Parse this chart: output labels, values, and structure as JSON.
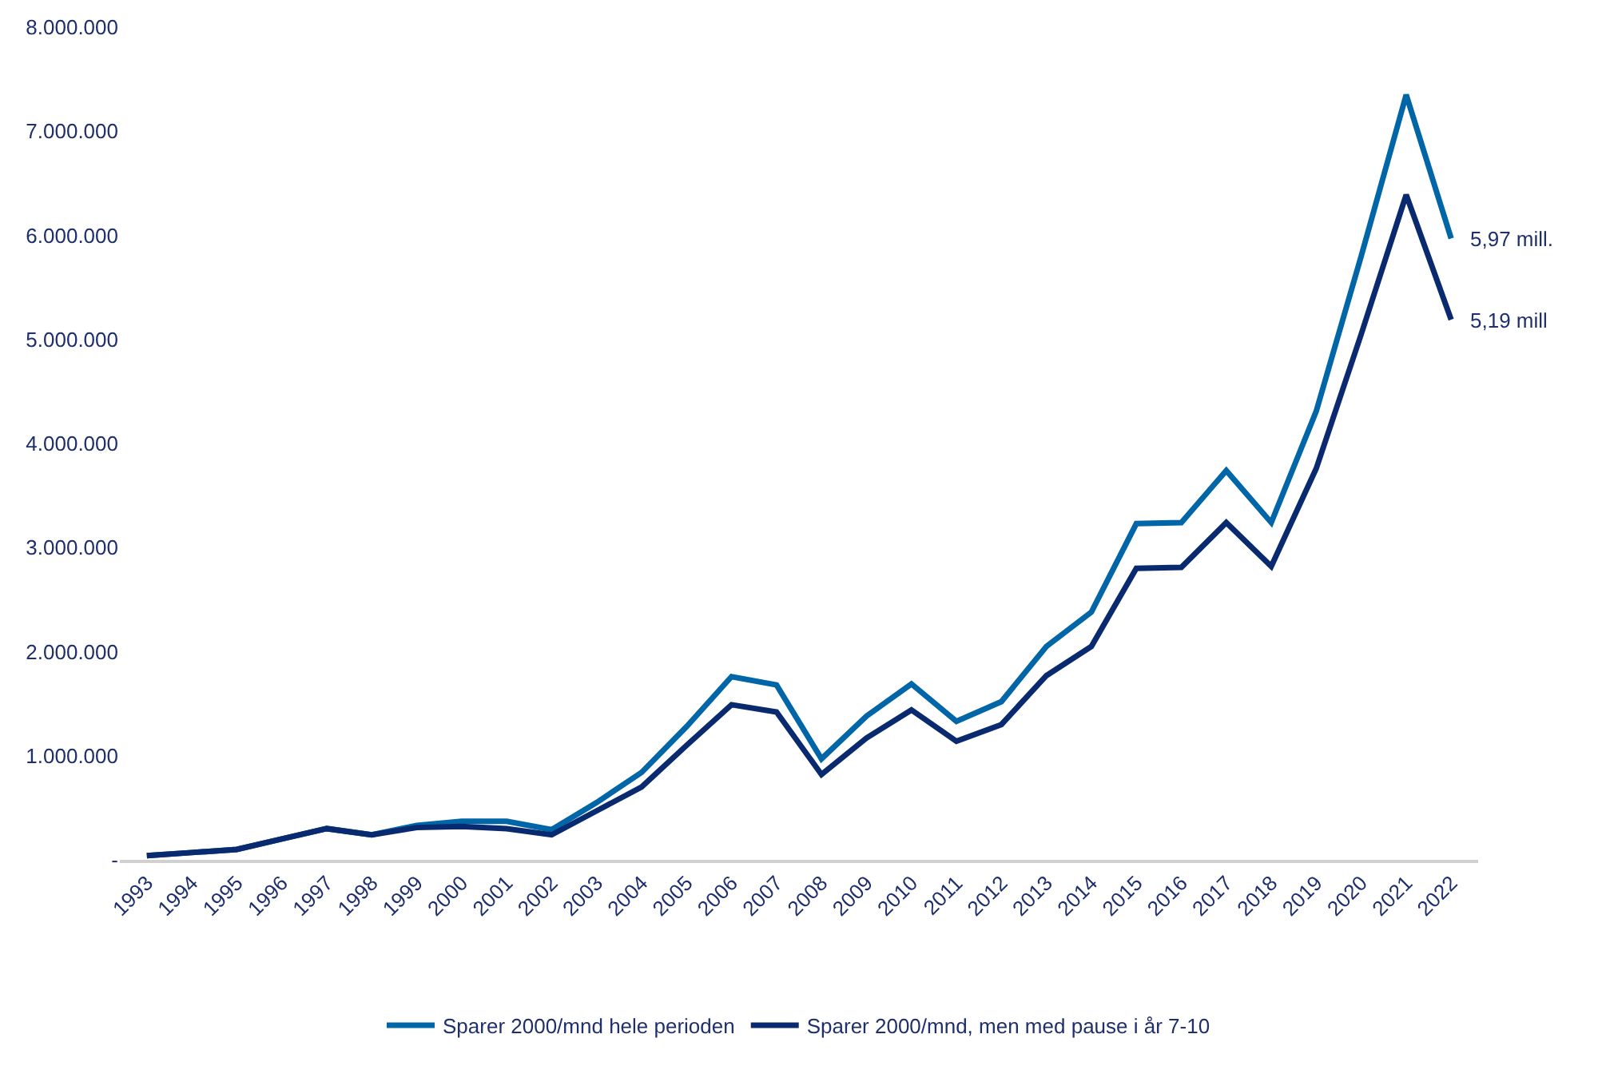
{
  "chart_data": {
    "type": "line",
    "categories": [
      "1993",
      "1994",
      "1995",
      "1996",
      "1997",
      "1998",
      "1999",
      "2000",
      "2001",
      "2002",
      "2003",
      "2004",
      "2005",
      "2006",
      "2007",
      "2008",
      "2009",
      "2010",
      "2011",
      "2012",
      "2013",
      "2014",
      "2015",
      "2016",
      "2017",
      "2018",
      "2019",
      "2020",
      "2021",
      "2022"
    ],
    "series": [
      {
        "name": "Sparer 2000/mnd hele perioden",
        "color": "#0066a8",
        "values": [
          40000,
          70000,
          100000,
          200000,
          300000,
          240000,
          330000,
          370000,
          370000,
          290000,
          550000,
          840000,
          1280000,
          1760000,
          1680000,
          970000,
          1380000,
          1690000,
          1330000,
          1520000,
          2050000,
          2380000,
          3230000,
          3240000,
          3740000,
          3240000,
          4310000,
          5800000,
          7350000,
          5970000
        ]
      },
      {
        "name": "Sparer 2000/mnd, men med pause i år 7-10",
        "color": "#0a2a70",
        "values": [
          40000,
          70000,
          100000,
          200000,
          300000,
          240000,
          310000,
          320000,
          300000,
          240000,
          470000,
          700000,
          1100000,
          1490000,
          1420000,
          820000,
          1170000,
          1440000,
          1140000,
          1300000,
          1770000,
          2050000,
          2800000,
          2810000,
          3240000,
          2820000,
          3760000,
          5050000,
          6390000,
          5190000
        ]
      }
    ],
    "ylim": [
      0,
      8000000
    ],
    "yticks": [
      {
        "value": 0,
        "label": "-"
      },
      {
        "value": 1000000,
        "label": "1.000.000"
      },
      {
        "value": 2000000,
        "label": "2.000.000"
      },
      {
        "value": 3000000,
        "label": "3.000.000"
      },
      {
        "value": 4000000,
        "label": "4.000.000"
      },
      {
        "value": 5000000,
        "label": "5.000.000"
      },
      {
        "value": 6000000,
        "label": "6.000.000"
      },
      {
        "value": 7000000,
        "label": "7.000.000"
      },
      {
        "value": 8000000,
        "label": "8.000.000"
      }
    ],
    "annotations": [
      {
        "text": "5,97 mill.",
        "x": "2022",
        "y": 5970000
      },
      {
        "text": "5,19 mill",
        "x": "2022",
        "y": 5190000
      }
    ],
    "legend": "bottom",
    "marker": "none",
    "line_style": "solid"
  }
}
